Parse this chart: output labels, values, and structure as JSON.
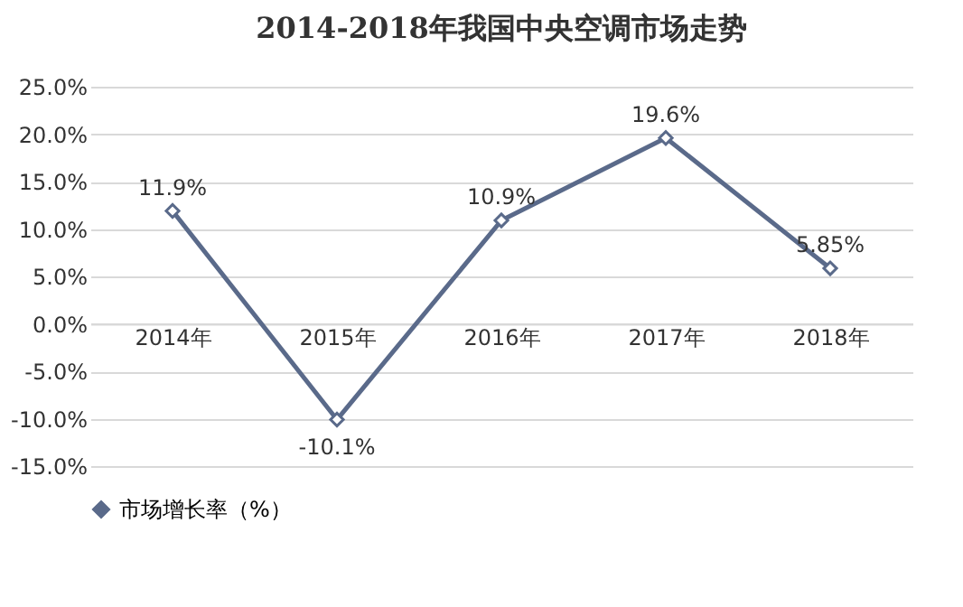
{
  "chart_data": {
    "type": "line",
    "title": "2014-2018年我国中央空调市场走势",
    "categories": [
      "2014年",
      "2015年",
      "2016年",
      "2017年",
      "2018年"
    ],
    "series": [
      {
        "name": "市场增长率（%）",
        "color": "#5a6a8a",
        "values": [
          11.9,
          -10.1,
          10.9,
          19.6,
          5.85
        ],
        "value_labels": [
          "11.9%",
          "-10.1%",
          "10.9%",
          "19.6%",
          "5.85%"
        ]
      }
    ],
    "ylim": [
      -15,
      25
    ],
    "yticks": [
      {
        "value": -15,
        "label": "-15.0%"
      },
      {
        "value": -10,
        "label": "-10.0%"
      },
      {
        "value": -5,
        "label": "-5.0%"
      },
      {
        "value": 0,
        "label": "0.0%"
      },
      {
        "value": 5,
        "label": "5.0%"
      },
      {
        "value": 10,
        "label": "10.0%"
      },
      {
        "value": 15,
        "label": "15.0%"
      },
      {
        "value": 20,
        "label": "20.0%"
      },
      {
        "value": 25,
        "label": "25.0%"
      }
    ],
    "grid": "y",
    "legend": "bottom",
    "marker": "diamond",
    "line_style": "solid"
  }
}
